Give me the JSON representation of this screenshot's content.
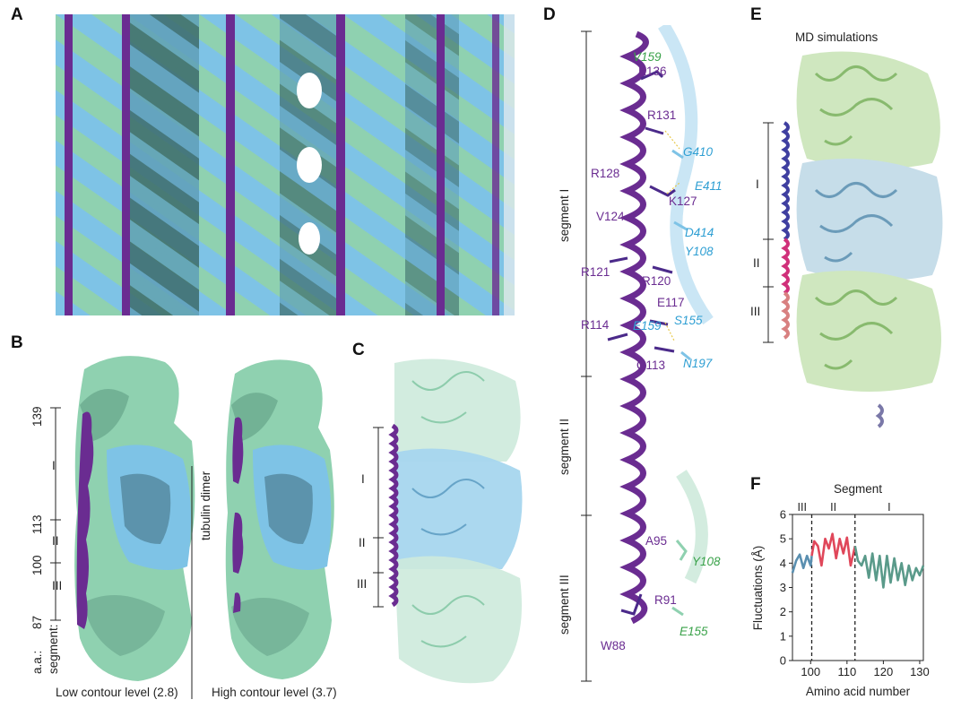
{
  "panels": {
    "A": {
      "label": "A"
    },
    "B": {
      "label": "B",
      "axis_title": "a.a.:",
      "segment_title": "segment:",
      "aa_ticks": [
        "139",
        "113",
        "100",
        "87"
      ],
      "segments": [
        "I",
        "II",
        "III"
      ],
      "dimer_label": "tubulin dimer",
      "captions": [
        "Low contour level (2.8)",
        "High contour level (3.7)"
      ]
    },
    "C": {
      "label": "C",
      "segments": [
        "I",
        "II",
        "III"
      ]
    },
    "D": {
      "label": "D",
      "segments": [
        "segment I",
        "segment II",
        "segment III"
      ],
      "residues_purple": [
        "K136",
        "R131",
        "R128",
        "K127",
        "V124",
        "R121",
        "R120",
        "E117",
        "R114",
        "Q113",
        "A95",
        "R91",
        "W88"
      ],
      "residues_blue": [
        "G410",
        "E411",
        "D414",
        "Y108",
        "E159",
        "S155",
        "N197"
      ],
      "residues_green": [
        "V159",
        "Y108",
        "E155"
      ]
    },
    "E": {
      "label": "E",
      "title": "MD simulations",
      "segments": [
        "I",
        "II",
        "III"
      ]
    },
    "F": {
      "label": "F"
    }
  },
  "colors": {
    "purple": "#6a2c91",
    "light_blue": "#7ec3e6",
    "mint_green": "#8fd1b0",
    "dark_teal": "#3c6b6a",
    "red": "#e0475a",
    "teal_line": "#5a9a8a",
    "blue_line": "#5a8fb0"
  },
  "chart_data": {
    "type": "line",
    "title": "Segment",
    "xlabel": "Amino acid number",
    "ylabel": "Fluctuations (Å)",
    "xlim": [
      95,
      131
    ],
    "ylim": [
      0,
      6
    ],
    "xticks": [
      100,
      110,
      120,
      130
    ],
    "yticks": [
      0,
      1,
      2,
      3,
      4,
      5,
      6
    ],
    "segment_labels": [
      "III",
      "II",
      "I"
    ],
    "dividers": [
      100.3,
      112.2
    ],
    "series": [
      {
        "color": "#5a8fb0",
        "x": [
          95,
          96,
          97,
          98,
          99,
          100,
          100.3
        ],
        "y": [
          3.6,
          4.1,
          4.35,
          3.8,
          4.3,
          3.9,
          4.3
        ]
      },
      {
        "color": "#e0475a",
        "x": [
          100.3,
          101,
          102,
          103,
          104,
          105,
          106,
          107,
          108,
          109,
          110,
          111,
          112.2
        ],
        "y": [
          4.3,
          4.9,
          4.7,
          3.9,
          5.0,
          4.6,
          5.2,
          4.2,
          5.0,
          4.4,
          5.05,
          3.9,
          4.7
        ]
      },
      {
        "color": "#5a9a8a",
        "x": [
          112.2,
          113,
          114,
          115,
          116,
          117,
          118,
          119,
          120,
          121,
          122,
          123,
          124,
          125,
          126,
          127,
          128,
          129,
          130,
          131
        ],
        "y": [
          4.7,
          4.1,
          3.9,
          4.3,
          3.4,
          4.4,
          3.3,
          4.3,
          3.0,
          4.3,
          3.2,
          4.2,
          3.3,
          4.0,
          3.1,
          3.9,
          3.3,
          3.8,
          3.5,
          3.9
        ]
      }
    ]
  }
}
